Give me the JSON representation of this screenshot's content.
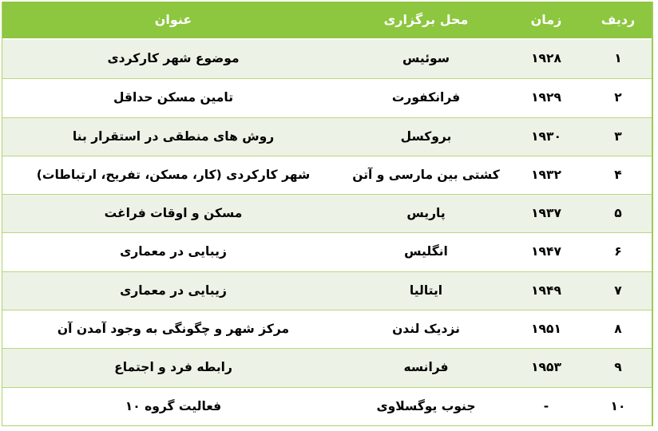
{
  "table": {
    "direction": "rtl",
    "columns": [
      {
        "key": "radif",
        "label": "ردیف"
      },
      {
        "key": "zaman",
        "label": "زمان"
      },
      {
        "key": "mahal",
        "label": "محل برگزاری"
      },
      {
        "key": "onvan",
        "label": "عنوان"
      }
    ],
    "rows": [
      {
        "radif": "۱",
        "zaman": "۱۹۲۸",
        "mahal": "سوئیس",
        "onvan": "موضوع شهر کارکردی"
      },
      {
        "radif": "۲",
        "zaman": "۱۹۲۹",
        "mahal": "فرانکفورت",
        "onvan": "تامین مسکن حداقل"
      },
      {
        "radif": "۳",
        "zaman": "۱۹۳۰",
        "mahal": "بروکسل",
        "onvan": "روش های منطقی در استقرار بنا"
      },
      {
        "radif": "۴",
        "zaman": "۱۹۳۲",
        "mahal": "کشتی بین مارسی و آتن",
        "onvan": "شهر کارکردی (کار، مسکن، تفریح، ارتباطات)"
      },
      {
        "radif": "۵",
        "zaman": "۱۹۳۷",
        "mahal": "پاریس",
        "onvan": "مسکن و اوقات فراغت"
      },
      {
        "radif": "۶",
        "zaman": "۱۹۴۷",
        "mahal": "انگلیس",
        "onvan": "زیبایی در معماری"
      },
      {
        "radif": "۷",
        "zaman": "۱۹۴۹",
        "mahal": "ایتالیا",
        "onvan": "زیبایی در معماری"
      },
      {
        "radif": "۸",
        "zaman": "۱۹۵۱",
        "mahal": "نزدیک لندن",
        "onvan": "مرکز شهر و چگونگی به وجود آمدن آن"
      },
      {
        "radif": "۹",
        "zaman": "۱۹۵۳",
        "mahal": "فرانسه",
        "onvan": "رابطه فرد و اجتماع"
      },
      {
        "radif": "۱۰",
        "zaman": "-",
        "mahal": "جنوب یوگسلاوی",
        "onvan": "فعالیت گروه ۱۰"
      }
    ]
  },
  "colors": {
    "header_bg": "#8dc63f",
    "header_text": "#ffffff",
    "band_bg": "#edf2e6",
    "separator": "#b9d77e",
    "outer_border": "#9ecb52",
    "outer_border_light": "#aed269",
    "body_text": "#000000",
    "page_bg": "#ffffff"
  }
}
